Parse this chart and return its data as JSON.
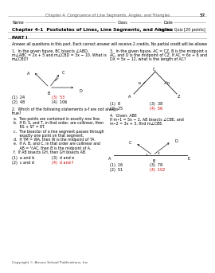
{
  "page_number": "57",
  "header": "Chapter 4  Congruence of Line Segments, Angles, and Triangles",
  "name_label": "Name",
  "class_label": "Class",
  "date_label": "Date",
  "chapter_title": "Chapter 4-1  Postulates of Lines, Line Segments, and Angles",
  "section_quiz": "Section Quiz [20 points]",
  "part1": "PART I",
  "instructions": "Answer all questions in this part. Each correct answer will receive 2 credits. No partial credit will be allowed. [12]",
  "q1_line1": "1.  In the given figure, BC bisects ∠ABD,",
  "q1_line2": "m∠ABC = 2x + 5 and m∠CBD = 3x − 10. What is",
  "q1_line3": "m∠CBD?",
  "q1_c1": "(1)  24",
  "q1_c2": "(2)  48",
  "q1_c3": "(3)  53",
  "q1_c4": "(4)  106",
  "q2_line1": "2.  Which of the following statements a-f are not always",
  "q2_line2": "true?",
  "q2_a": "a.  Two points are contained in exactly one line.",
  "q2_b1": "b.  If R, S, and T, in that order, are collinear, then",
  "q2_b2": "     RS + ST = RT.",
  "q2_c1": "c.  The bisector of a line segment passes through",
  "q2_c2": "     exactly one point on that segment.",
  "q2_d": "d.  If TM = WA, then W is the midpoint of TA.",
  "q2_e1": "e.  If A, B, and C, in that order are collinear and",
  "q2_e2": "     AB = ½AC, then B is the midpoint of A.",
  "q2_f": "f.  If AB bisects GH, then GH bisects AB.",
  "q2_c1c": "(1)  a and b",
  "q2_c2c": "(2)  c and d",
  "q2_c3c": "(3)  d and e",
  "q2_c4c": "(4)  d and f",
  "q3_line1": "3.  In the given figure, AC = CZ, B is the midpoint of",
  "q3_line2": "AC, and D is the midpoint of CZ. If AC = 6x + 8 and",
  "q3_line3": "DX = 5x − 12, what is the length of AC?",
  "q3_c1": "(1)  8",
  "q3_c2": "(2)  25",
  "q3_c3": "(3)  38",
  "q3_c4": "(4)  56",
  "q4_line1": "4.  Given: ABE",
  "q4_line2": "If m∙1 = 5x − 2, AB bisects ∠CBE, and",
  "q4_line3": "m∙2 = 3x + 3, find m∠CBE.",
  "q4_c1": "(1)  16",
  "q4_c2": "(2)  51",
  "q4_c3": "(3)  78",
  "q4_c4": "(4)  102",
  "footer": "Copyright © Amsco School Publications, Inc.",
  "bg_color": "#ffffff",
  "text_color": "#000000",
  "answer_color": "#cc0000"
}
